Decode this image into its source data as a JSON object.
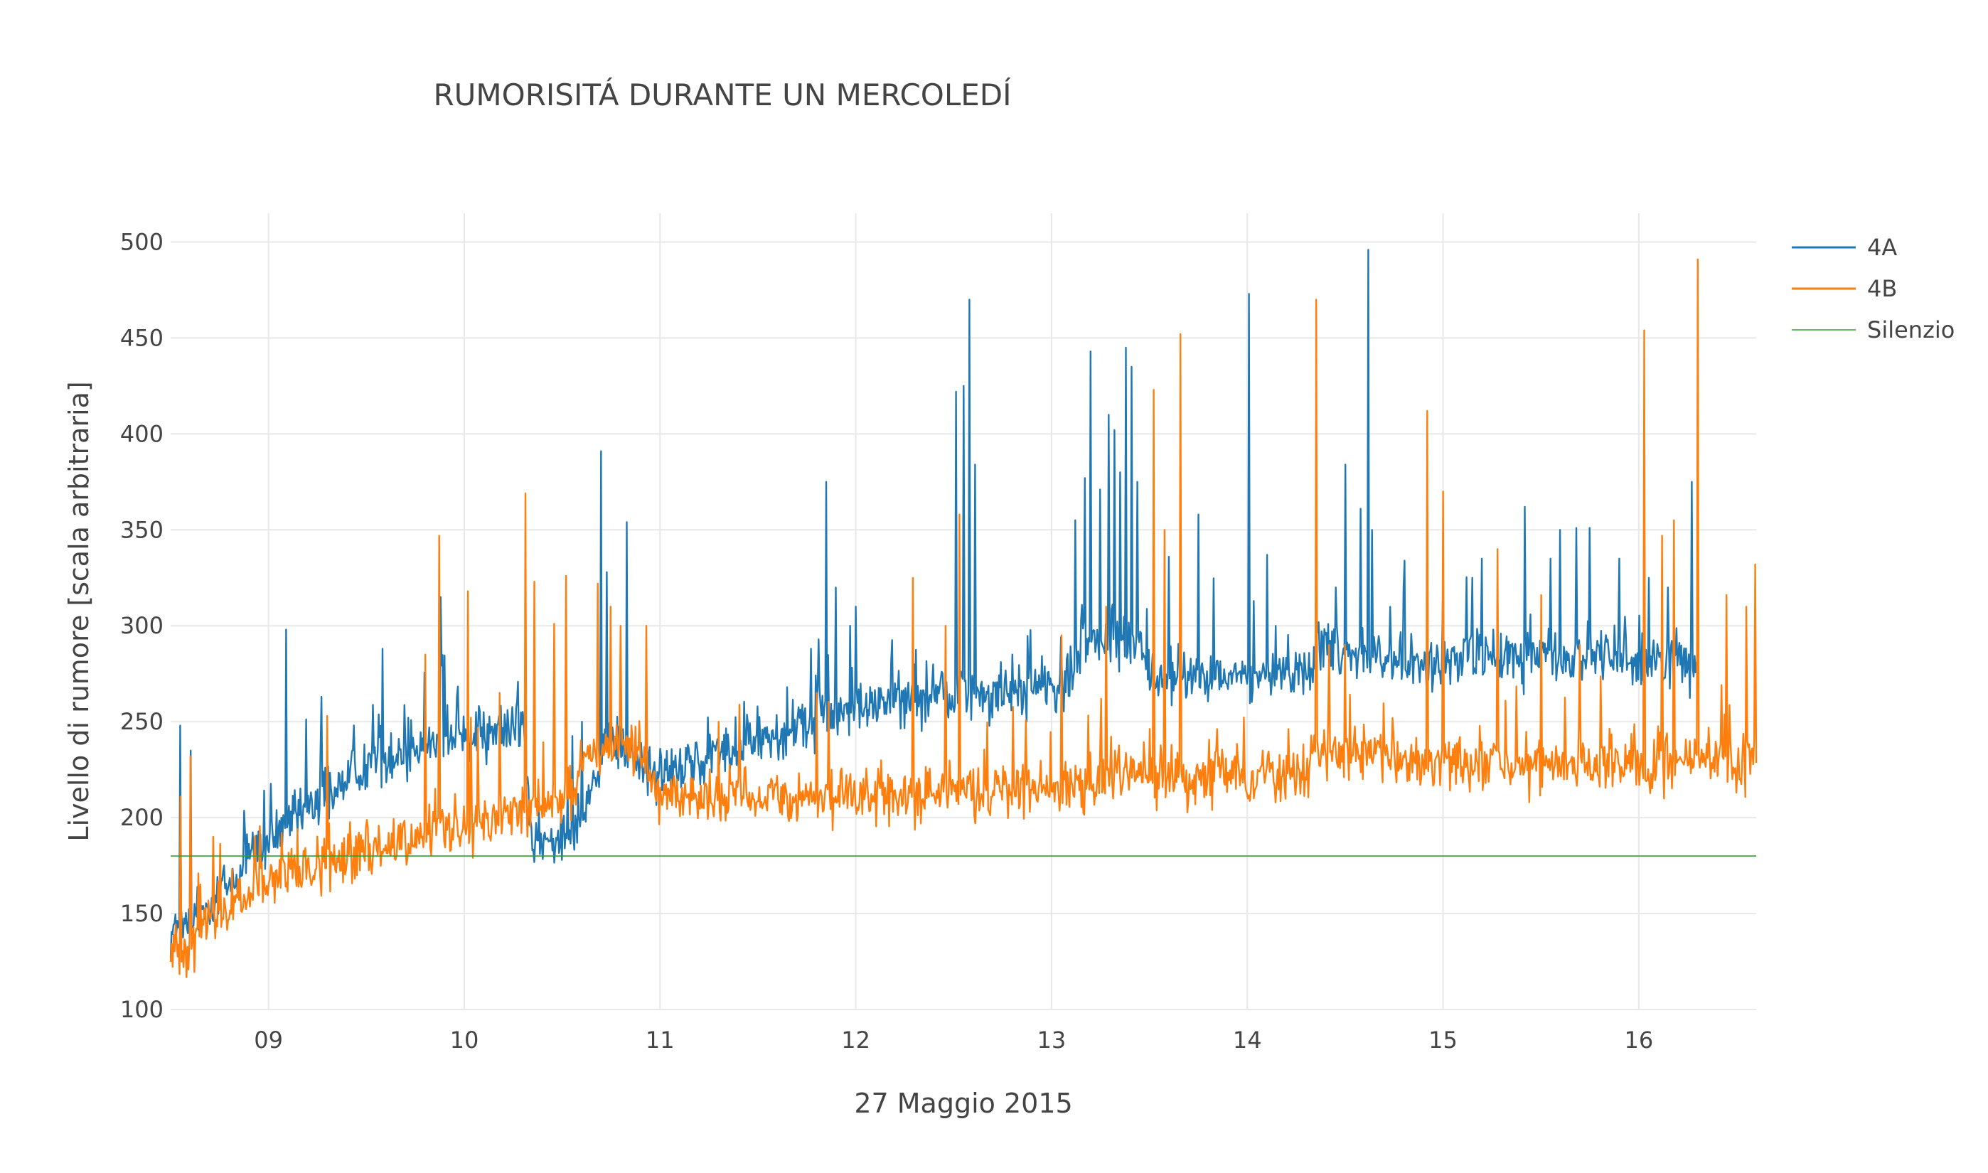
{
  "chart_data": {
    "type": "line",
    "title": "RUMORISITÁ DURANTE UN MERCOLEDÍ",
    "xlabel": "27 Maggio 2015",
    "ylabel": "Livello di rumore [scala arbitraria]",
    "x_unit": "hour of day",
    "xlim": [
      8.5,
      16.6
    ],
    "ylim": [
      100,
      515
    ],
    "x_ticks": [
      {
        "value": 9,
        "label": "09"
      },
      {
        "value": 10,
        "label": "10"
      },
      {
        "value": 11,
        "label": "11"
      },
      {
        "value": 12,
        "label": "12"
      },
      {
        "value": 13,
        "label": "13"
      },
      {
        "value": 14,
        "label": "14"
      },
      {
        "value": 15,
        "label": "15"
      },
      {
        "value": 16,
        "label": "16"
      }
    ],
    "y_ticks": [
      100,
      150,
      200,
      250,
      300,
      350,
      400,
      450,
      500
    ],
    "grid": true,
    "legend_position": "top-right",
    "series": [
      {
        "name": "4A",
        "color": "#1f77b4",
        "x_range": [
          8.5,
          16.3
        ],
        "baseline": [
          [
            8.5,
            140
          ],
          [
            8.6,
            145
          ],
          [
            8.75,
            160
          ],
          [
            9.0,
            185
          ],
          [
            9.25,
            210
          ],
          [
            9.5,
            228
          ],
          [
            9.75,
            238
          ],
          [
            10.0,
            243
          ],
          [
            10.3,
            248
          ],
          [
            10.35,
            185
          ],
          [
            10.45,
            185
          ],
          [
            10.6,
            205
          ],
          [
            10.75,
            240
          ],
          [
            11.0,
            222
          ],
          [
            11.25,
            232
          ],
          [
            11.5,
            240
          ],
          [
            11.75,
            248
          ],
          [
            12.0,
            257
          ],
          [
            12.25,
            262
          ],
          [
            12.5,
            264
          ],
          [
            12.75,
            266
          ],
          [
            13.0,
            268
          ],
          [
            13.1,
            270
          ],
          [
            13.15,
            290
          ],
          [
            13.45,
            295
          ],
          [
            13.5,
            272
          ],
          [
            14.0,
            274
          ],
          [
            14.3,
            276
          ],
          [
            14.35,
            290
          ],
          [
            14.7,
            285
          ],
          [
            14.8,
            279
          ],
          [
            15.0,
            282
          ],
          [
            15.5,
            284
          ],
          [
            16.0,
            283
          ],
          [
            16.3,
            282
          ]
        ],
        "spikes": [
          [
            8.55,
            248
          ],
          [
            8.6,
            235
          ],
          [
            9.09,
            298
          ],
          [
            9.27,
            263
          ],
          [
            9.58,
            288
          ],
          [
            9.88,
            315
          ],
          [
            10.1,
            255
          ],
          [
            10.25,
            248
          ],
          [
            10.6,
            250
          ],
          [
            10.7,
            391
          ],
          [
            10.73,
            328
          ],
          [
            10.83,
            354
          ],
          [
            11.1,
            228
          ],
          [
            11.5,
            258
          ],
          [
            11.65,
            268
          ],
          [
            11.77,
            288
          ],
          [
            11.85,
            375
          ],
          [
            11.9,
            320
          ],
          [
            11.97,
            300
          ],
          [
            12.0,
            310
          ],
          [
            12.3,
            280
          ],
          [
            12.51,
            422
          ],
          [
            12.55,
            425
          ],
          [
            12.58,
            470
          ],
          [
            12.61,
            384
          ],
          [
            12.8,
            285
          ],
          [
            13.12,
            355
          ],
          [
            13.17,
            377
          ],
          [
            13.2,
            443
          ],
          [
            13.25,
            371
          ],
          [
            13.29,
            410
          ],
          [
            13.32,
            402
          ],
          [
            13.35,
            380
          ],
          [
            13.38,
            445
          ],
          [
            13.41,
            435
          ],
          [
            13.44,
            375
          ],
          [
            13.6,
            336
          ],
          [
            13.75,
            358
          ],
          [
            14.01,
            473
          ],
          [
            14.1,
            337
          ],
          [
            14.45,
            320
          ],
          [
            14.5,
            384
          ],
          [
            14.58,
            361
          ],
          [
            14.62,
            496
          ],
          [
            14.64,
            350
          ],
          [
            14.8,
            320
          ],
          [
            15.0,
            313
          ],
          [
            15.15,
            325
          ],
          [
            15.2,
            335
          ],
          [
            15.42,
            362
          ],
          [
            15.55,
            335
          ],
          [
            15.6,
            350
          ],
          [
            15.68,
            351
          ],
          [
            15.75,
            351
          ],
          [
            15.9,
            335
          ],
          [
            16.05,
            325
          ],
          [
            16.15,
            320
          ],
          [
            16.27,
            375
          ]
        ],
        "noise": 9,
        "spike_rate": 0.06
      },
      {
        "name": "4B",
        "color": "#ff7f0e",
        "x_range": [
          8.5,
          16.6
        ],
        "baseline": [
          [
            8.5,
            130
          ],
          [
            8.6,
            135
          ],
          [
            8.75,
            150
          ],
          [
            9.0,
            165
          ],
          [
            9.25,
            175
          ],
          [
            9.5,
            183
          ],
          [
            9.75,
            190
          ],
          [
            10.0,
            196
          ],
          [
            10.25,
            203
          ],
          [
            10.5,
            208
          ],
          [
            10.65,
            235
          ],
          [
            10.9,
            240
          ],
          [
            11.0,
            212
          ],
          [
            11.5,
            210
          ],
          [
            12.0,
            211
          ],
          [
            12.5,
            213
          ],
          [
            13.0,
            215
          ],
          [
            13.2,
            217
          ],
          [
            13.25,
            225
          ],
          [
            13.5,
            222
          ],
          [
            14.0,
            221
          ],
          [
            14.3,
            222
          ],
          [
            14.35,
            235
          ],
          [
            15.0,
            228
          ],
          [
            15.5,
            228
          ],
          [
            16.0,
            230
          ],
          [
            16.6,
            230
          ]
        ],
        "spikes": [
          [
            8.55,
            211
          ],
          [
            8.6,
            232
          ],
          [
            8.72,
            190
          ],
          [
            9.3,
            253
          ],
          [
            9.8,
            285
          ],
          [
            9.87,
            347
          ],
          [
            10.02,
            318
          ],
          [
            10.18,
            265
          ],
          [
            10.31,
            369
          ],
          [
            10.36,
            323
          ],
          [
            10.46,
            301
          ],
          [
            10.52,
            326
          ],
          [
            10.68,
            322
          ],
          [
            10.75,
            310
          ],
          [
            10.8,
            300
          ],
          [
            10.93,
            300
          ],
          [
            11.3,
            250
          ],
          [
            11.8,
            265
          ],
          [
            12.29,
            325
          ],
          [
            12.46,
            300
          ],
          [
            12.53,
            358
          ],
          [
            13.05,
            295
          ],
          [
            13.28,
            310
          ],
          [
            13.52,
            423
          ],
          [
            13.58,
            350
          ],
          [
            13.66,
            452
          ],
          [
            14.35,
            470
          ],
          [
            14.42,
            290
          ],
          [
            14.5,
            290
          ],
          [
            14.92,
            412
          ],
          [
            15.0,
            370
          ],
          [
            15.28,
            340
          ],
          [
            15.5,
            316
          ],
          [
            15.7,
            290
          ],
          [
            16.03,
            454
          ],
          [
            16.12,
            347
          ],
          [
            16.18,
            355
          ],
          [
            16.3,
            491
          ],
          [
            16.45,
            316
          ],
          [
            16.55,
            310
          ],
          [
            16.6,
            332
          ]
        ],
        "noise": 9,
        "spike_rate": 0.05
      },
      {
        "name": "Silenzio",
        "color": "#2ca02c",
        "x": [
          8.5,
          16.6
        ],
        "y": [
          180,
          180
        ]
      }
    ]
  }
}
